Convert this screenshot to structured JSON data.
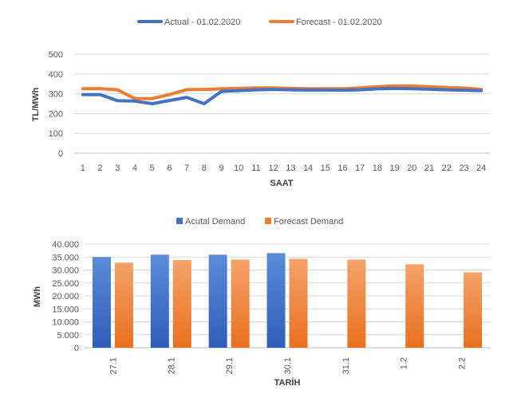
{
  "chart_data": [
    {
      "type": "line",
      "xlabel": "SAAT",
      "ylabel": "TL/MWh",
      "ylim": [
        0,
        500
      ],
      "yticks": [
        0,
        100,
        200,
        300,
        400,
        500
      ],
      "grid": true,
      "legend": "top",
      "x": [
        "1",
        "2",
        "3",
        "4",
        "5",
        "6",
        "7",
        "8",
        "9",
        "10",
        "11",
        "12",
        "13",
        "14",
        "15",
        "16",
        "17",
        "18",
        "19",
        "20",
        "21",
        "22",
        "23",
        "24"
      ],
      "series": [
        {
          "name": "Actual - 01.02.2020",
          "color": "#4472C4",
          "values": [
            296,
            296,
            265,
            263,
            250,
            266,
            282,
            250,
            312,
            316,
            320,
            322,
            320,
            319,
            319,
            318,
            320,
            325,
            327,
            326,
            323,
            320,
            318,
            316
          ]
        },
        {
          "name": "Forecast - 01.02.2020",
          "color": "#ED7D31",
          "values": [
            326,
            326,
            320,
            276,
            276,
            296,
            321,
            322,
            325,
            328,
            330,
            330,
            328,
            326,
            326,
            326,
            330,
            336,
            340,
            340,
            336,
            332,
            329,
            322
          ]
        }
      ]
    },
    {
      "type": "bar",
      "xlabel": "TARİH",
      "ylabel": "MWh",
      "ylim": [
        0,
        40000
      ],
      "yticks": [
        0,
        5000,
        10000,
        15000,
        20000,
        25000,
        30000,
        35000,
        40000
      ],
      "ytick_labels": [
        "0",
        "5.000",
        "10.000",
        "15.000",
        "20.000",
        "25.000",
        "30.000",
        "35.000",
        "40.000"
      ],
      "grid": true,
      "legend": "top",
      "categories": [
        "27.1",
        "28.1",
        "29.1",
        "30.1",
        "31.1",
        "1.2",
        "2.2"
      ],
      "series": [
        {
          "name": "Acutal Demand",
          "color": "#4472C4",
          "values": [
            35000,
            35900,
            35900,
            36500,
            null,
            null,
            null
          ]
        },
        {
          "name": "Forecast Demand",
          "color": "#ED7D31",
          "values": [
            32800,
            33800,
            34000,
            34300,
            34000,
            32200,
            29100
          ]
        }
      ]
    }
  ]
}
